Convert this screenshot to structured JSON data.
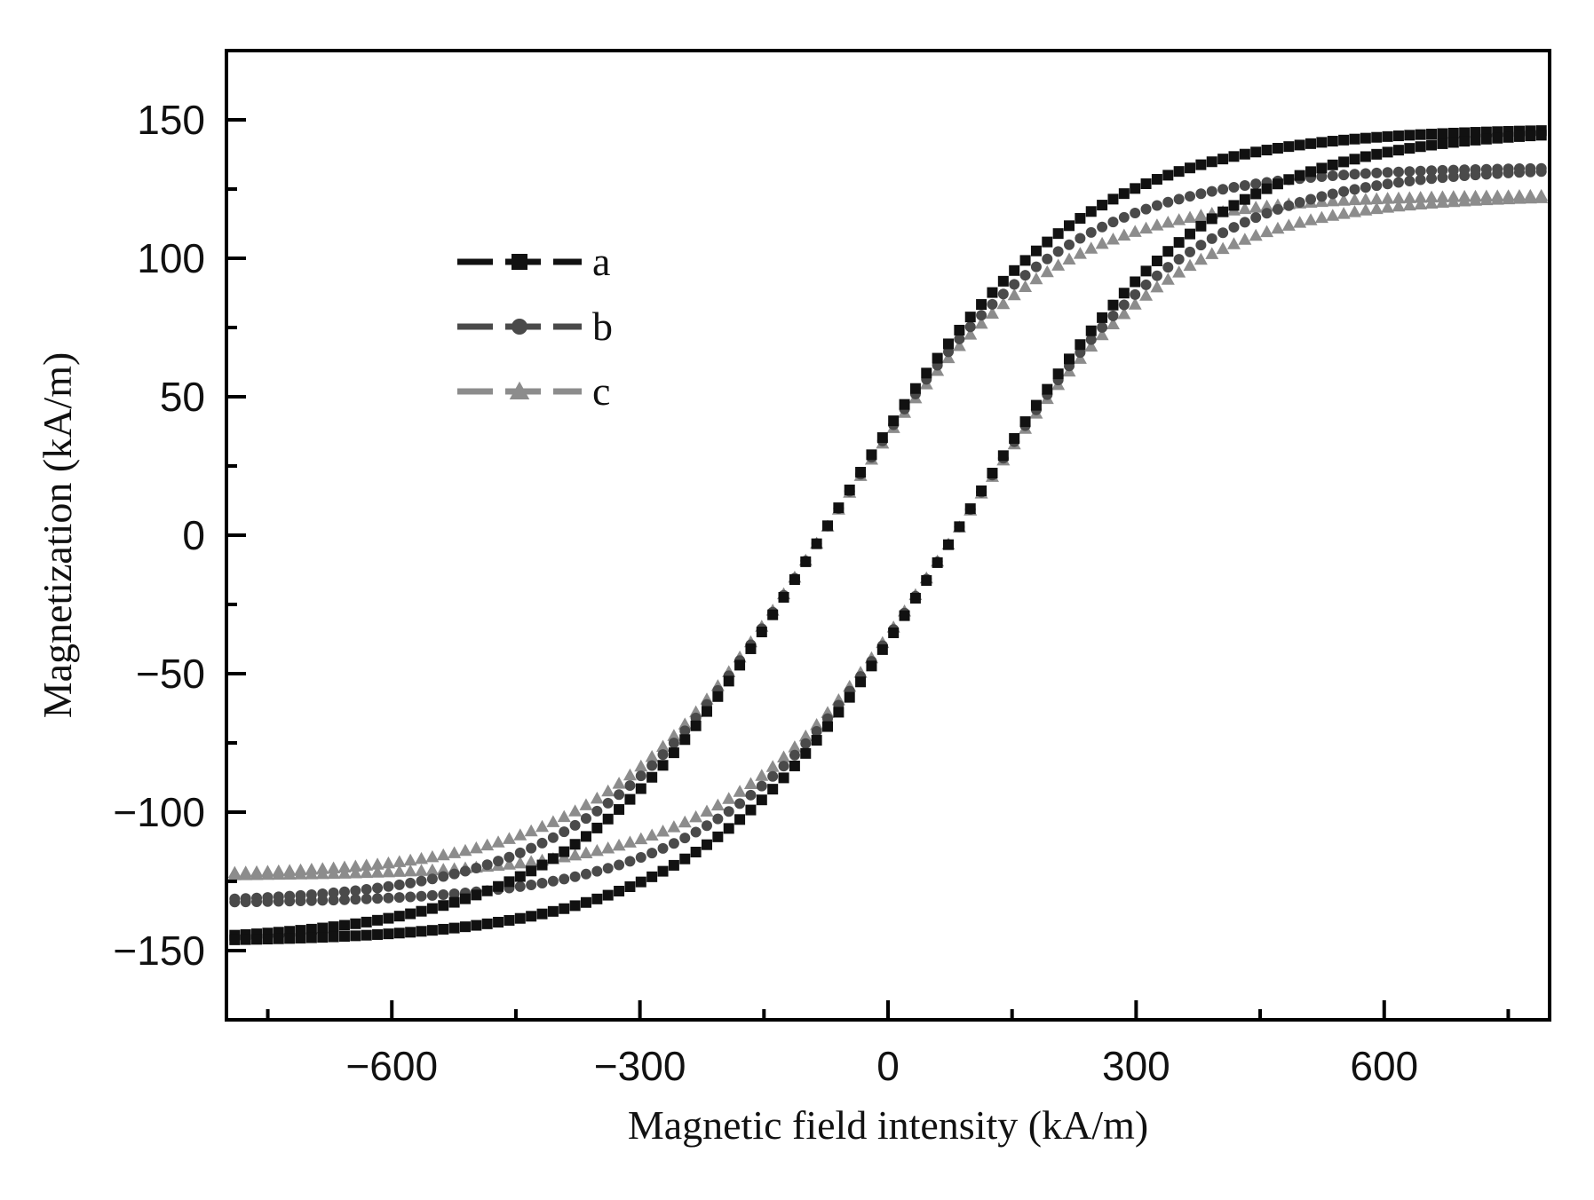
{
  "chart_data": {
    "type": "line",
    "title": "",
    "xlabel": "Magnetic field intensity (kA/m)",
    "ylabel": "Magnetization (kA/m)",
    "xlim": [
      -800,
      800
    ],
    "ylim": [
      -175,
      175
    ],
    "xticks": [
      -600,
      -300,
      0,
      300,
      600
    ],
    "yticks": [
      -150,
      -100,
      -50,
      0,
      50,
      100,
      150
    ],
    "xtick_labels": [
      "−600",
      "−300",
      "0",
      "300",
      "600"
    ],
    "ytick_labels": [
      "−150",
      "−100",
      "−50",
      "0",
      "50",
      "100",
      "150"
    ],
    "grid": false,
    "legend_position": "upper-left",
    "loop_model": {
      "description": "hysteresis loop M = Ms * tanh((H ± Hc) / w); upper branch (descending H) uses +Hc, lower branch (ascending H) uses −Hc",
      "h_range": [
        -790,
        790
      ],
      "points_per_branch": 120
    },
    "series": [
      {
        "name": "a",
        "marker": "square",
        "color": "#111111",
        "Ms": 147,
        "Hc": 80,
        "w": 300
      },
      {
        "name": "b",
        "marker": "circle",
        "color": "#4a4a4a",
        "Ms": 133,
        "Hc": 80,
        "w": 280
      },
      {
        "name": "c",
        "marker": "triangle",
        "color": "#8c8c8c",
        "Ms": 123,
        "Hc": 80,
        "w": 265
      }
    ]
  }
}
